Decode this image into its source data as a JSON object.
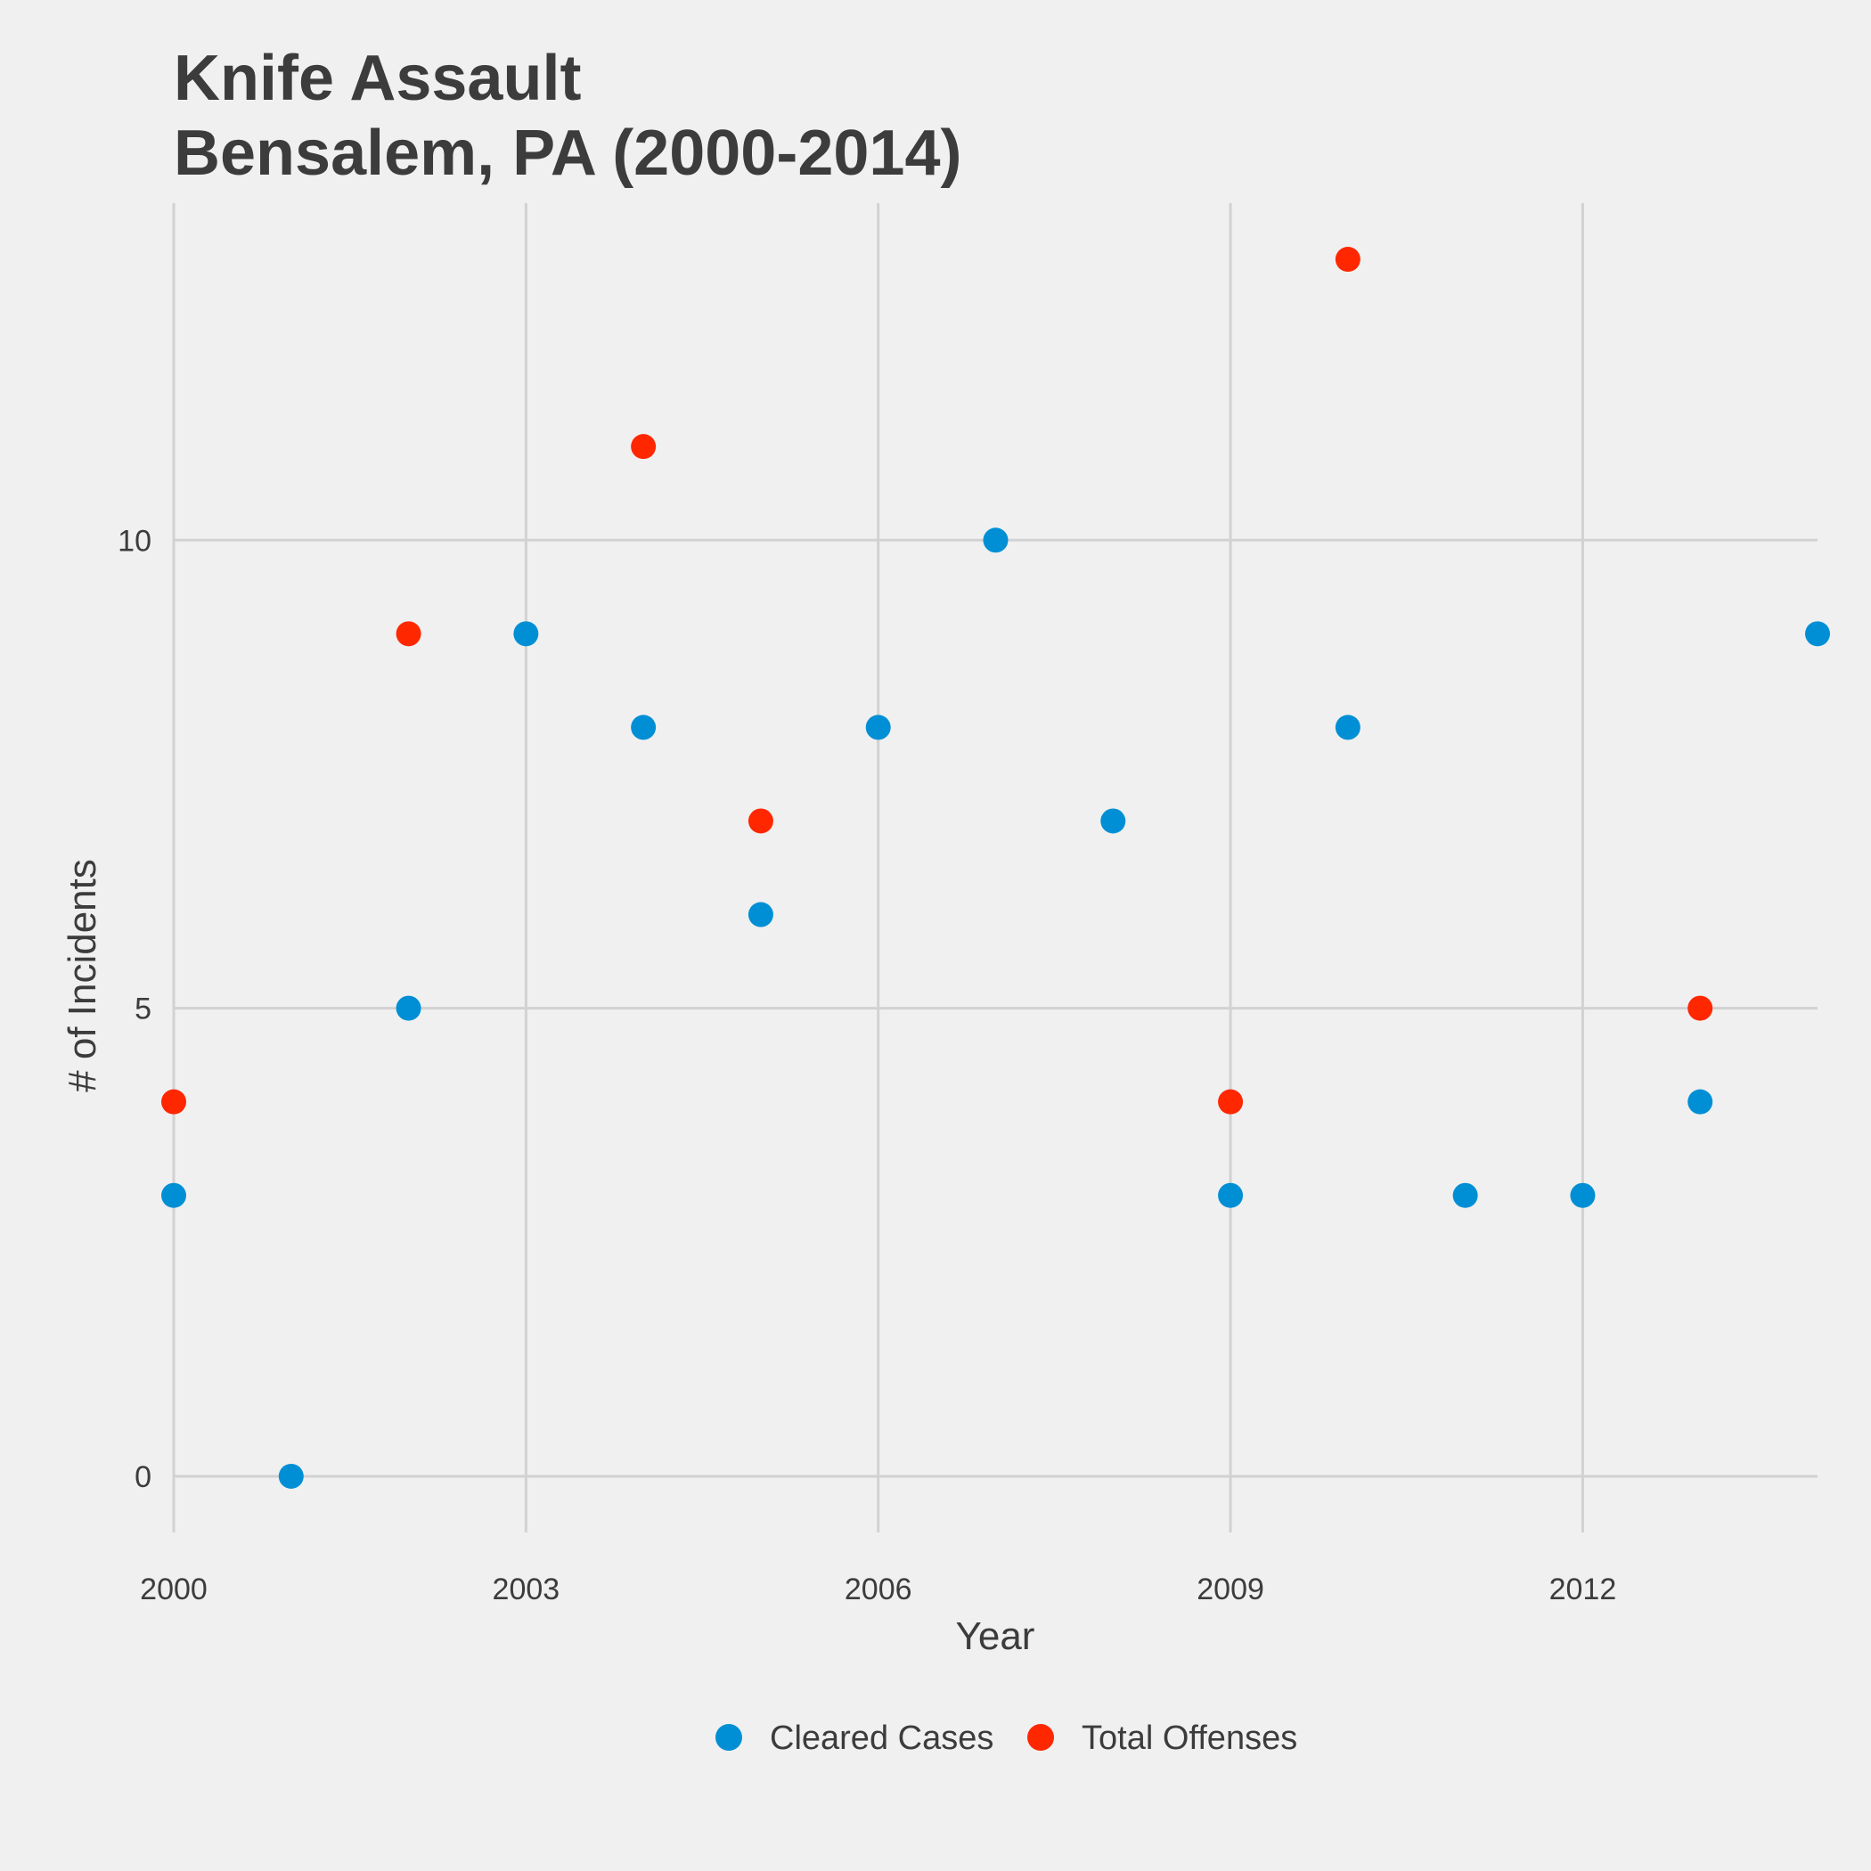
{
  "chart_data": {
    "type": "scatter",
    "title": "Knife Assault",
    "subtitle": "Bensalem, PA (2000-2014)",
    "xlabel": "Year",
    "ylabel": "# of Incidents",
    "xlim": [
      2000,
      2014
    ],
    "ylim": [
      0,
      13
    ],
    "x_ticks": [
      2000,
      2003,
      2006,
      2009,
      2012
    ],
    "y_ticks": [
      0,
      5,
      10
    ],
    "grid": true,
    "legend_position": "bottom",
    "series": [
      {
        "name": "Cleared Cases",
        "color": "#008fd5",
        "points": [
          {
            "x": 2000,
            "y": 3
          },
          {
            "x": 2001,
            "y": 0
          },
          {
            "x": 2002,
            "y": 5
          },
          {
            "x": 2003,
            "y": 9
          },
          {
            "x": 2004,
            "y": 8
          },
          {
            "x": 2005,
            "y": 6
          },
          {
            "x": 2006,
            "y": 8
          },
          {
            "x": 2007,
            "y": 10
          },
          {
            "x": 2008,
            "y": 7
          },
          {
            "x": 2009,
            "y": 3
          },
          {
            "x": 2010,
            "y": 8
          },
          {
            "x": 2011,
            "y": 3
          },
          {
            "x": 2012,
            "y": 3
          },
          {
            "x": 2013,
            "y": 4
          },
          {
            "x": 2014,
            "y": 9
          }
        ]
      },
      {
        "name": "Total Offenses",
        "color": "#ff2700",
        "points": [
          {
            "x": 2000,
            "y": 4
          },
          {
            "x": 2002,
            "y": 9
          },
          {
            "x": 2004,
            "y": 11
          },
          {
            "x": 2005,
            "y": 7
          },
          {
            "x": 2009,
            "y": 4
          },
          {
            "x": 2010,
            "y": 13
          },
          {
            "x": 2013,
            "y": 5
          }
        ]
      }
    ]
  }
}
